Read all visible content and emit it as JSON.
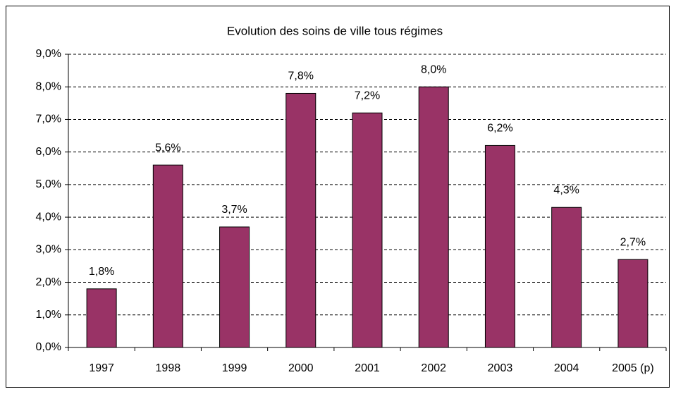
{
  "chart_data": {
    "type": "bar",
    "title": "Evolution des soins de ville tous régimes",
    "categories": [
      "1997",
      "1998",
      "1999",
      "2000",
      "2001",
      "2002",
      "2003",
      "2004",
      "2005 (p)"
    ],
    "values": [
      1.8,
      5.6,
      3.7,
      7.8,
      7.2,
      8.0,
      6.2,
      4.3,
      2.7
    ],
    "value_labels": [
      "1,8%",
      "5,6%",
      "3,7%",
      "7,8%",
      "7,2%",
      "8,0%",
      "6,2%",
      "4,3%",
      "2,7%"
    ],
    "color": "#993366",
    "ylim": [
      0,
      9
    ],
    "yticks": [
      {
        "value": 0,
        "label": "0,0%"
      },
      {
        "value": 1,
        "label": "1,0%"
      },
      {
        "value": 2,
        "label": "2,0%"
      },
      {
        "value": 3,
        "label": "3,0%"
      },
      {
        "value": 4,
        "label": "4,0%"
      },
      {
        "value": 5,
        "label": "5,0%"
      },
      {
        "value": 6,
        "label": "6,0%"
      },
      {
        "value": 7,
        "label": "7,0%"
      },
      {
        "value": 8,
        "label": "8,0%"
      },
      {
        "value": 9,
        "label": "9,0%"
      }
    ],
    "grid": true
  }
}
